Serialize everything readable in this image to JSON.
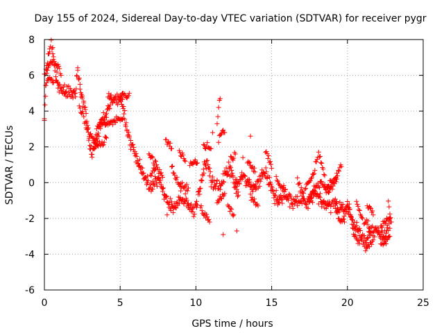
{
  "chart_data": {
    "type": "scatter",
    "title": "Day 155 of 2024, Sidereal Day-to-day VTEC variation (SDTVAR) for receiver pygr",
    "xlabel": "GPS time / hours",
    "ylabel": "SDTVAR / TECUs",
    "xlim": [
      0,
      25
    ],
    "ylim": [
      -6,
      8
    ],
    "x_ticks": [
      0,
      5,
      10,
      15,
      20,
      25
    ],
    "y_ticks": [
      -6,
      -4,
      -2,
      0,
      2,
      4,
      6,
      8
    ],
    "grid": true,
    "marker": "+",
    "color": "#ff0000",
    "series": [
      {
        "name": "SDTVAR",
        "trace": [
          [
            0.0,
            3.8
          ],
          [
            0.08,
            5.0
          ],
          [
            0.15,
            6.3
          ],
          [
            0.25,
            7.0
          ],
          [
            0.35,
            7.6
          ],
          [
            0.45,
            7.8
          ],
          [
            0.55,
            7.2
          ],
          [
            0.65,
            6.6
          ],
          [
            0.75,
            6.1
          ],
          [
            0.9,
            5.6
          ],
          [
            1.05,
            5.3
          ],
          [
            1.25,
            5.1
          ],
          [
            1.5,
            5.0
          ],
          [
            1.8,
            5.0
          ],
          [
            2.05,
            5.1
          ],
          [
            2.2,
            6.2
          ],
          [
            2.35,
            5.4
          ],
          [
            2.5,
            4.6
          ],
          [
            2.7,
            4.0
          ],
          [
            2.85,
            3.2
          ],
          [
            3.0,
            2.2
          ],
          [
            3.15,
            1.6
          ],
          [
            3.3,
            2.0
          ],
          [
            3.5,
            2.6
          ],
          [
            3.7,
            3.2
          ],
          [
            3.9,
            3.6
          ],
          [
            4.1,
            3.9
          ],
          [
            4.3,
            4.3
          ],
          [
            4.5,
            4.6
          ],
          [
            4.75,
            4.8
          ],
          [
            5.0,
            4.7
          ],
          [
            5.15,
            4.2
          ],
          [
            5.3,
            3.6
          ],
          [
            5.45,
            3.0
          ],
          [
            5.6,
            2.4
          ],
          [
            5.8,
            2.0
          ],
          [
            6.05,
            1.6
          ],
          [
            6.3,
            1.0
          ],
          [
            6.55,
            0.4
          ],
          [
            6.8,
            0.0
          ],
          [
            7.05,
            -0.3
          ],
          [
            7.35,
            0.2
          ],
          [
            7.6,
            0.0
          ],
          [
            7.9,
            -0.6
          ],
          [
            8.15,
            -1.1
          ],
          [
            8.4,
            -1.4
          ],
          [
            8.7,
            -1.2
          ],
          [
            9.0,
            -0.8
          ],
          [
            9.3,
            -1.0
          ],
          [
            9.6,
            -1.3
          ],
          [
            9.85,
            -1.7
          ],
          [
            10.05,
            -1.2
          ],
          [
            10.25,
            -0.5
          ],
          [
            10.45,
            0.6
          ],
          [
            10.6,
            1.2
          ],
          [
            10.8,
            1.0
          ],
          [
            11.0,
            0.2
          ],
          [
            11.2,
            -0.3
          ],
          [
            11.4,
            -0.1
          ],
          [
            11.6,
            -0.3
          ],
          [
            11.8,
            0.1
          ],
          [
            12.0,
            0.5
          ],
          [
            12.25,
            0.8
          ],
          [
            12.45,
            0.3
          ],
          [
            12.7,
            -0.2
          ],
          [
            12.95,
            0.1
          ],
          [
            13.2,
            0.4
          ],
          [
            13.45,
            0.0
          ],
          [
            13.7,
            -0.3
          ],
          [
            13.95,
            -0.2
          ],
          [
            14.2,
            0.2
          ],
          [
            14.45,
            0.6
          ],
          [
            14.7,
            0.4
          ],
          [
            14.95,
            -0.3
          ],
          [
            15.2,
            -0.8
          ],
          [
            15.5,
            -1.0
          ],
          [
            15.8,
            -0.6
          ],
          [
            16.1,
            -0.8
          ],
          [
            16.4,
            -1.1
          ],
          [
            16.7,
            -0.9
          ],
          [
            17.0,
            -1.0
          ],
          [
            17.3,
            -1.2
          ],
          [
            17.6,
            -0.8
          ],
          [
            17.9,
            -0.5
          ],
          [
            18.2,
            -0.9
          ],
          [
            18.5,
            -1.2
          ],
          [
            18.8,
            -1.3
          ],
          [
            19.1,
            -1.1
          ],
          [
            19.4,
            -1.4
          ],
          [
            19.7,
            -1.6
          ],
          [
            19.95,
            -1.3
          ],
          [
            20.2,
            -1.8
          ],
          [
            20.45,
            -2.4
          ],
          [
            20.7,
            -2.6
          ],
          [
            20.95,
            -3.0
          ],
          [
            21.2,
            -3.2
          ],
          [
            21.45,
            -2.8
          ],
          [
            21.7,
            -2.6
          ],
          [
            21.95,
            -2.7
          ],
          [
            22.2,
            -2.9
          ],
          [
            22.45,
            -3.0
          ],
          [
            22.7,
            -2.6
          ],
          [
            22.85,
            -2.2
          ]
        ],
        "segments": [
          [
            [
              0.0,
              6.0
            ],
            [
              0.3,
              6.5
            ],
            [
              0.6,
              6.8
            ],
            [
              0.9,
              6.5
            ],
            [
              1.1,
              6.0
            ]
          ],
          [
            [
              0.1,
              5.6
            ],
            [
              0.3,
              5.9
            ],
            [
              0.6,
              5.6
            ]
          ],
          [
            [
              2.3,
              4.2
            ],
            [
              2.6,
              3.6
            ],
            [
              2.9,
              2.8
            ],
            [
              3.2,
              2.4
            ],
            [
              3.5,
              2.1
            ],
            [
              3.8,
              2.2
            ],
            [
              4.1,
              2.5
            ]
          ],
          [
            [
              3.2,
              2.0
            ],
            [
              3.5,
              3.0
            ],
            [
              3.8,
              3.4
            ],
            [
              4.1,
              3.2
            ],
            [
              4.5,
              3.3
            ],
            [
              4.8,
              3.6
            ],
            [
              5.2,
              3.6
            ]
          ],
          [
            [
              5.0,
              4.9
            ],
            [
              5.3,
              4.8
            ],
            [
              5.6,
              5.0
            ]
          ],
          [
            [
              4.2,
              4.8
            ],
            [
              4.4,
              4.9
            ]
          ],
          [
            [
              6.9,
              1.6
            ],
            [
              7.2,
              1.2
            ],
            [
              7.4,
              1.0
            ]
          ],
          [
            [
              7.0,
              0.4
            ],
            [
              7.2,
              0.7
            ],
            [
              7.4,
              1.0
            ],
            [
              7.6,
              0.6
            ],
            [
              7.8,
              0.3
            ]
          ],
          [
            [
              8.0,
              2.4
            ],
            [
              8.2,
              2.2
            ],
            [
              8.4,
              1.9
            ]
          ],
          [
            [
              8.4,
              1.0
            ],
            [
              8.6,
              0.4
            ],
            [
              8.9,
              0.0
            ],
            [
              9.2,
              -0.2
            ],
            [
              9.5,
              -0.3
            ]
          ],
          [
            [
              8.9,
              1.8
            ],
            [
              9.1,
              1.5
            ],
            [
              9.3,
              1.2
            ]
          ],
          [
            [
              9.6,
              1.0
            ],
            [
              9.9,
              1.2
            ],
            [
              10.1,
              1.1
            ]
          ],
          [
            [
              10.5,
              2.0
            ],
            [
              10.8,
              2.1
            ],
            [
              11.0,
              1.9
            ]
          ],
          [
            [
              10.3,
              -1.4
            ],
            [
              10.6,
              -1.8
            ],
            [
              10.9,
              -2.2
            ]
          ],
          [
            [
              11.4,
              3.2
            ],
            [
              11.5,
              4.2
            ],
            [
              11.6,
              4.7
            ]
          ],
          [
            [
              11.5,
              2.4
            ],
            [
              11.7,
              2.8
            ],
            [
              11.9,
              2.8
            ]
          ],
          [
            [
              11.4,
              -1.0
            ],
            [
              11.7,
              -0.8
            ],
            [
              11.9,
              -0.6
            ]
          ],
          [
            [
              12.1,
              -1.4
            ],
            [
              12.3,
              -1.6
            ],
            [
              12.5,
              -1.8
            ]
          ],
          [
            [
              12.3,
              1.6
            ],
            [
              12.45,
              1.4
            ],
            [
              12.6,
              1.6
            ]
          ],
          [
            [
              12.6,
              -0.4
            ],
            [
              12.8,
              -0.7
            ]
          ],
          [
            [
              13.4,
              1.2
            ],
            [
              13.7,
              0.9
            ],
            [
              13.9,
              0.6
            ]
          ],
          [
            [
              13.6,
              -0.8
            ],
            [
              13.9,
              -1.1
            ],
            [
              14.1,
              -1.3
            ]
          ],
          [
            [
              14.6,
              1.8
            ],
            [
              14.8,
              1.4
            ],
            [
              15.0,
              0.8
            ]
          ],
          [
            [
              15.3,
              0.2
            ],
            [
              15.6,
              -0.2
            ],
            [
              15.9,
              -0.4
            ]
          ],
          [
            [
              16.7,
              0.2
            ],
            [
              16.9,
              -0.3
            ],
            [
              17.1,
              -0.6
            ]
          ],
          [
            [
              17.2,
              -0.2
            ],
            [
              17.5,
              0.1
            ],
            [
              17.8,
              0.6
            ],
            [
              17.95,
              1.3
            ],
            [
              18.1,
              1.7
            ],
            [
              18.3,
              1.0
            ],
            [
              18.5,
              0.4
            ]
          ],
          [
            [
              17.4,
              -1.0
            ],
            [
              17.7,
              -0.6
            ],
            [
              18.0,
              -0.2
            ],
            [
              18.3,
              0.0
            ],
            [
              18.6,
              -0.4
            ],
            [
              18.9,
              -0.2
            ]
          ],
          [
            [
              18.5,
              -0.4
            ],
            [
              18.8,
              -0.1
            ],
            [
              19.1,
              0.2
            ],
            [
              19.4,
              0.6
            ],
            [
              19.6,
              0.9
            ]
          ],
          [
            [
              18.7,
              -0.6
            ],
            [
              19.0,
              -0.2
            ],
            [
              19.3,
              0.2
            ]
          ],
          [
            [
              19.2,
              -1.6
            ],
            [
              19.5,
              -2.0
            ],
            [
              19.8,
              -2.2
            ]
          ],
          [
            [
              20.0,
              -1.2
            ],
            [
              20.2,
              -1.8
            ],
            [
              20.4,
              -2.8
            ],
            [
              20.6,
              -3.2
            ],
            [
              20.8,
              -3.4
            ]
          ],
          [
            [
              20.6,
              -1.2
            ],
            [
              20.8,
              -1.6
            ],
            [
              21.0,
              -2.0
            ]
          ],
          [
            [
              21.1,
              -2.4
            ],
            [
              21.3,
              -2.2
            ],
            [
              21.5,
              -2.5
            ]
          ],
          [
            [
              21.3,
              -1.2
            ],
            [
              21.5,
              -1.4
            ],
            [
              21.7,
              -1.8
            ]
          ],
          [
            [
              21.2,
              -3.8
            ],
            [
              21.4,
              -3.5
            ],
            [
              21.7,
              -3.2
            ]
          ],
          [
            [
              22.2,
              -2.4
            ],
            [
              22.5,
              -2.2
            ],
            [
              22.8,
              -2.0
            ]
          ],
          [
            [
              22.2,
              -3.4
            ],
            [
              22.5,
              -3.3
            ],
            [
              22.8,
              -3.0
            ]
          ],
          [
            [
              22.7,
              -1.0
            ],
            [
              22.8,
              -1.6
            ],
            [
              22.9,
              -2.2
            ]
          ]
        ],
        "isolated": [
          [
            12.7,
            -2.7
          ],
          [
            13.1,
            1.4
          ],
          [
            13.6,
            2.6
          ],
          [
            11.1,
            2.8
          ],
          [
            11.8,
            -2.9
          ],
          [
            8.1,
            -1.8
          ]
        ]
      }
    ]
  }
}
